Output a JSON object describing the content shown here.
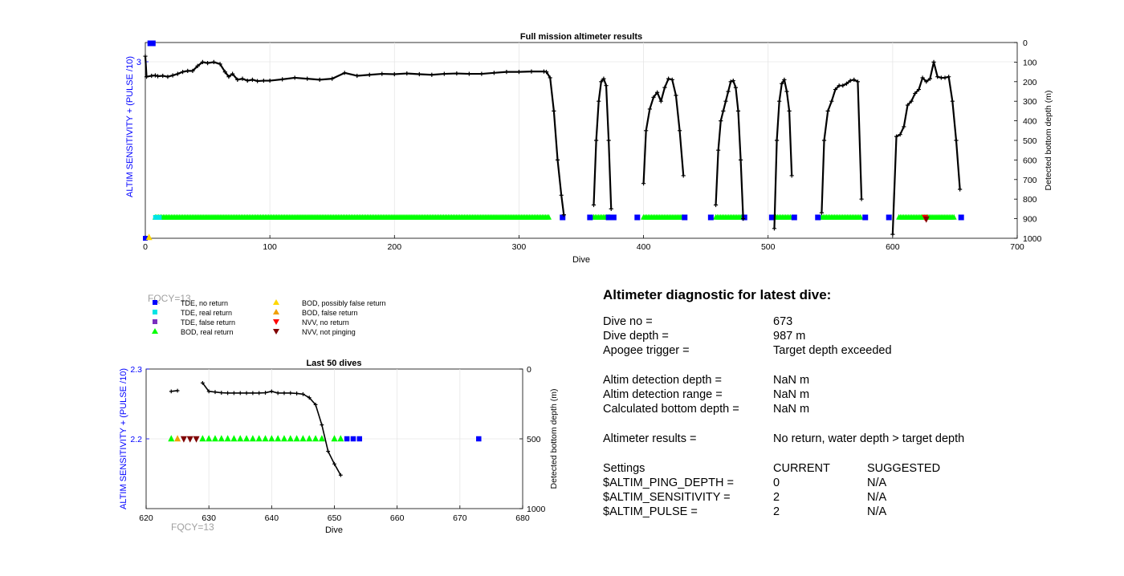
{
  "charts": {
    "full": {
      "title": "Full mission altimeter results",
      "xlabel": "Dive",
      "ylabel_left": "ALTIM SENSITIVITY + (PULSE /10)",
      "ylabel_right": "Detected bottom depth (m)",
      "left_tick": "3"
    },
    "last": {
      "title": "Last 50 dives",
      "xlabel": "Dive",
      "ylabel_left": "ALTIM SENSITIVITY + (PULSE /10)",
      "ylabel_right": "Detected bottom depth (m)",
      "fqcy_top": "FQCY=13",
      "fqcy_bottom": "FQCY=13"
    }
  },
  "legend": {
    "tde_no": "TDE, no return",
    "tde_real": "TDE, real return",
    "tde_false": "TDE, false return",
    "bod_real": "BOD, real return",
    "bod_possibly": "BOD, possibly false return",
    "bod_false": "BOD, false return",
    "nvv_no": "NVV, no return",
    "nvv_not": "NVV, not pinging"
  },
  "colors": {
    "tde_no": "#0000ff",
    "tde_real": "#00e5e5",
    "tde_false": "#7a2fbe",
    "bod_real": "#00ff00",
    "bod_possibly": "#ffd700",
    "bod_false": "#f0a000",
    "nvv_no": "#ff0000",
    "nvv_not": "#800000",
    "depth_line": "#000000",
    "left_axis": "#0000ff"
  },
  "diagnostic": {
    "title": "Altimeter diagnostic for latest dive:",
    "dive_no_label": "Dive no =",
    "dive_no": "673",
    "dive_depth_label": "Dive depth =",
    "dive_depth": "987 m",
    "apogee_label": "Apogee trigger =",
    "apogee": "Target depth exceeded",
    "det_depth_label": "Altim detection depth =",
    "det_depth": "NaN m",
    "det_range_label": "Altim detection range =",
    "det_range": "NaN m",
    "calc_label": "Calculated bottom depth =",
    "calc": "NaN m",
    "results_label": "Altimeter results =",
    "results": "No return, water depth > target depth",
    "settings_label": "Settings",
    "current_header": "CURRENT",
    "suggested_header": "SUGGESTED",
    "ping_label": "$ALTIM_PING_DEPTH =",
    "ping_current": "0",
    "ping_suggested": "N/A",
    "sens_label": "$ALTIM_SENSITIVITY =",
    "sens_current": "2",
    "sens_suggested": "N/A",
    "pulse_label": "$ALTIM_PULSE =",
    "pulse_current": "2",
    "pulse_suggested": "N/A"
  },
  "chart_data": [
    {
      "type": "scatter",
      "title": "Full mission altimeter results",
      "xlabel": "Dive",
      "ylabel": "ALTIM SENSITIVITY + (PULSE /10)",
      "y2label": "Detected bottom depth (m)",
      "xlim": [
        0,
        700
      ],
      "x_ticks": [
        0,
        100,
        200,
        300,
        400,
        500,
        600,
        700
      ],
      "y2lim": [
        0,
        1000
      ],
      "y2_ticks": [
        0,
        100,
        200,
        300,
        400,
        500,
        600,
        700,
        800,
        900,
        1000
      ],
      "y2_reversed": true,
      "ylim_left_ticks": [
        "3"
      ],
      "grid": true,
      "depth_series": [
        {
          "x": [
            0,
            1,
            5,
            8,
            10,
            14,
            18,
            22,
            26,
            30,
            34,
            38,
            42,
            46,
            50,
            55,
            60,
            64,
            67,
            70,
            74,
            78,
            82,
            86,
            90,
            95,
            100,
            110,
            120,
            130,
            140,
            150,
            160,
            170,
            180,
            190,
            200,
            210,
            220,
            230,
            240,
            250,
            260,
            270,
            280,
            290,
            300,
            310,
            320,
            322,
            325,
            328,
            331,
            334,
            336
          ],
          "y": [
            70,
            175,
            170,
            168,
            172,
            170,
            175,
            168,
            160,
            150,
            145,
            145,
            120,
            100,
            105,
            100,
            110,
            150,
            175,
            160,
            190,
            185,
            195,
            190,
            197,
            195,
            195,
            188,
            180,
            185,
            190,
            185,
            155,
            170,
            165,
            160,
            162,
            158,
            162,
            165,
            160,
            158,
            160,
            160,
            155,
            150,
            150,
            148,
            148,
            150,
            180,
            350,
            600,
            780,
            880
          ]
        },
        {
          "x": [
            360,
            362,
            364,
            366,
            368,
            370,
            372,
            374
          ],
          "y": [
            830,
            500,
            300,
            200,
            185,
            220,
            500,
            850
          ]
        },
        {
          "x": [
            400,
            402,
            405,
            408,
            411,
            414,
            417,
            420,
            423,
            426,
            429,
            432
          ],
          "y": [
            720,
            450,
            340,
            280,
            255,
            300,
            230,
            185,
            190,
            270,
            450,
            680
          ]
        },
        {
          "x": [
            458,
            460,
            462,
            464,
            466,
            468,
            470,
            472,
            474,
            476,
            478,
            480
          ],
          "y": [
            830,
            550,
            400,
            350,
            300,
            250,
            200,
            195,
            230,
            350,
            600,
            900
          ]
        },
        {
          "x": [
            505,
            507,
            509,
            511,
            513,
            515,
            517,
            519
          ],
          "y": [
            950,
            500,
            300,
            210,
            190,
            250,
            350,
            680
          ]
        },
        {
          "x": [
            543,
            545,
            548,
            551,
            554,
            557,
            560,
            563,
            566,
            569,
            572,
            575
          ],
          "y": [
            870,
            500,
            350,
            300,
            240,
            220,
            220,
            210,
            195,
            190,
            200,
            800
          ]
        },
        {
          "x": [
            600,
            603,
            606,
            609,
            612,
            615,
            618,
            621,
            624,
            627,
            630,
            633,
            636,
            639,
            642,
            645,
            648,
            651,
            654
          ],
          "y": [
            980,
            480,
            470,
            430,
            320,
            300,
            260,
            240,
            180,
            200,
            185,
            100,
            175,
            180,
            180,
            175,
            300,
            500,
            750
          ]
        }
      ],
      "markers": {
        "bod_real_ranges": [
          [
            8,
            325
          ],
          [
            360,
            374
          ],
          [
            400,
            432
          ],
          [
            458,
            480
          ],
          [
            505,
            519
          ],
          [
            543,
            575
          ],
          [
            605,
            650
          ]
        ],
        "tde_no_dives": [
          335,
          357,
          372,
          376,
          395,
          433,
          454,
          481,
          503,
          521,
          540,
          578,
          597,
          655
        ],
        "tde_real_dives": [
          5,
          8
        ],
        "bod_possibly_dives": [
          3
        ],
        "nvv_no_dives": [
          626
        ],
        "nvv_not_dives": [
          627
        ],
        "top_left_dives": [
          4,
          6
        ]
      }
    },
    {
      "type": "scatter",
      "title": "Last 50 dives",
      "xlabel": "Dive",
      "ylabel": "ALTIM SENSITIVITY + (PULSE /10)",
      "y2label": "Detected bottom depth (m)",
      "xlim": [
        620,
        680
      ],
      "x_ticks": [
        620,
        630,
        640,
        650,
        660,
        670,
        680
      ],
      "ylim": [
        2.1,
        2.3
      ],
      "y_ticks": [
        2.2,
        2.3
      ],
      "y2lim": [
        0,
        1000
      ],
      "y2_ticks": [
        0,
        500,
        1000
      ],
      "y2_reversed": true,
      "grid": true,
      "depth_series": [
        {
          "x": [
            624,
            625
          ],
          "y": [
            160,
            155
          ]
        },
        {
          "x": [
            629,
            630,
            631,
            632,
            633,
            634,
            635,
            636,
            637,
            638,
            639,
            640,
            641,
            642,
            643,
            644,
            645,
            646,
            647,
            648,
            649,
            650,
            651
          ],
          "y": [
            100,
            160,
            165,
            170,
            172,
            172,
            172,
            172,
            172,
            172,
            170,
            160,
            172,
            172,
            172,
            175,
            180,
            205,
            255,
            400,
            590,
            680,
            760
          ]
        }
      ],
      "markers": {
        "bod_real_dives": [
          624,
          629,
          630,
          631,
          632,
          633,
          634,
          635,
          636,
          637,
          638,
          639,
          640,
          641,
          642,
          643,
          644,
          645,
          646,
          647,
          648,
          650,
          651
        ],
        "bod_false_dives": [
          625
        ],
        "nvv_not_dives": [
          626,
          627,
          628
        ],
        "tde_no_dives": [
          652,
          653,
          654,
          673
        ],
        "y_level": 2.2
      }
    }
  ]
}
